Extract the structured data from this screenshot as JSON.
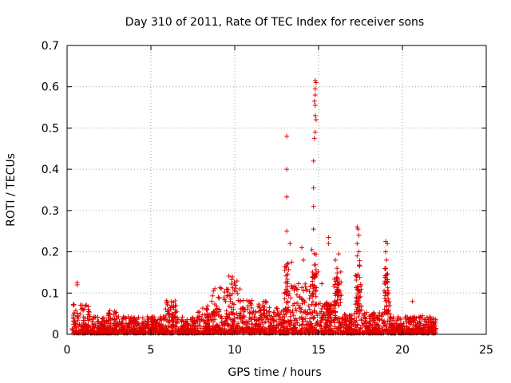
{
  "chart_data": {
    "type": "scatter",
    "title": "Day 310 of 2011, Rate Of TEC Index for receiver sons",
    "xlabel": "GPS time / hours",
    "ylabel": "ROTI / TECUs",
    "xlim": [
      0,
      25
    ],
    "ylim": [
      0,
      0.7
    ],
    "xticks": [
      "0",
      "5",
      "10",
      "15",
      "20",
      "25"
    ],
    "yticks": [
      "0",
      "0.1",
      "0.2",
      "0.3",
      "0.4",
      "0.5",
      "0.6",
      "0.7"
    ],
    "grid": true,
    "marker": "plus",
    "color": "#e00000",
    "notable_points": [
      {
        "x": 0.6,
        "y": 0.125
      },
      {
        "x": 0.6,
        "y": 0.12
      },
      {
        "x": 13.1,
        "y": 0.48
      },
      {
        "x": 13.1,
        "y": 0.4
      },
      {
        "x": 13.1,
        "y": 0.333
      },
      {
        "x": 13.1,
        "y": 0.25
      },
      {
        "x": 13.3,
        "y": 0.22
      },
      {
        "x": 13.4,
        "y": 0.175
      },
      {
        "x": 14.0,
        "y": 0.21
      },
      {
        "x": 14.1,
        "y": 0.18
      },
      {
        "x": 14.8,
        "y": 0.615
      },
      {
        "x": 14.85,
        "y": 0.61
      },
      {
        "x": 14.8,
        "y": 0.595
      },
      {
        "x": 14.8,
        "y": 0.58
      },
      {
        "x": 14.75,
        "y": 0.565
      },
      {
        "x": 14.8,
        "y": 0.555
      },
      {
        "x": 14.8,
        "y": 0.53
      },
      {
        "x": 14.85,
        "y": 0.52
      },
      {
        "x": 14.8,
        "y": 0.49
      },
      {
        "x": 14.75,
        "y": 0.475
      },
      {
        "x": 14.7,
        "y": 0.42
      },
      {
        "x": 14.7,
        "y": 0.355
      },
      {
        "x": 14.7,
        "y": 0.31
      },
      {
        "x": 14.7,
        "y": 0.255
      },
      {
        "x": 14.6,
        "y": 0.205
      },
      {
        "x": 15.6,
        "y": 0.235
      },
      {
        "x": 15.6,
        "y": 0.22
      },
      {
        "x": 16.2,
        "y": 0.195
      },
      {
        "x": 16.0,
        "y": 0.18
      },
      {
        "x": 16.1,
        "y": 0.16
      },
      {
        "x": 17.3,
        "y": 0.26
      },
      {
        "x": 17.35,
        "y": 0.255
      },
      {
        "x": 17.4,
        "y": 0.24
      },
      {
        "x": 17.3,
        "y": 0.22
      },
      {
        "x": 17.4,
        "y": 0.2
      },
      {
        "x": 17.3,
        "y": 0.19
      },
      {
        "x": 19.0,
        "y": 0.225
      },
      {
        "x": 19.1,
        "y": 0.22
      },
      {
        "x": 19.0,
        "y": 0.2
      },
      {
        "x": 19.05,
        "y": 0.18
      },
      {
        "x": 19.0,
        "y": 0.16
      },
      {
        "x": 20.6,
        "y": 0.08
      },
      {
        "x": 21.2,
        "y": 0.045
      }
    ],
    "activity_bands": [
      {
        "x_start": 0.3,
        "x_end": 1.4,
        "y_max": 0.07
      },
      {
        "x_start": 1.4,
        "x_end": 2.2,
        "y_max": 0.04
      },
      {
        "x_start": 2.2,
        "x_end": 3.2,
        "y_max": 0.055
      },
      {
        "x_start": 3.2,
        "x_end": 5.8,
        "y_max": 0.04
      },
      {
        "x_start": 5.8,
        "x_end": 6.6,
        "y_max": 0.08
      },
      {
        "x_start": 6.6,
        "x_end": 7.8,
        "y_max": 0.04
      },
      {
        "x_start": 7.8,
        "x_end": 8.6,
        "y_max": 0.07
      },
      {
        "x_start": 8.6,
        "x_end": 9.6,
        "y_max": 0.11
      },
      {
        "x_start": 9.6,
        "x_end": 10.4,
        "y_max": 0.14
      },
      {
        "x_start": 10.4,
        "x_end": 12.0,
        "y_max": 0.08
      },
      {
        "x_start": 12.0,
        "x_end": 13.0,
        "y_max": 0.065
      },
      {
        "x_start": 13.0,
        "x_end": 14.6,
        "y_max": 0.12
      },
      {
        "x_start": 14.6,
        "x_end": 15.2,
        "y_max": 0.15
      },
      {
        "x_start": 15.2,
        "x_end": 15.9,
        "y_max": 0.08
      },
      {
        "x_start": 15.9,
        "x_end": 16.4,
        "y_max": 0.15
      },
      {
        "x_start": 16.4,
        "x_end": 17.2,
        "y_max": 0.05
      },
      {
        "x_start": 17.2,
        "x_end": 17.6,
        "y_max": 0.15
      },
      {
        "x_start": 17.6,
        "x_end": 18.9,
        "y_max": 0.05
      },
      {
        "x_start": 18.9,
        "x_end": 19.3,
        "y_max": 0.14
      },
      {
        "x_start": 19.3,
        "x_end": 20.5,
        "y_max": 0.04
      },
      {
        "x_start": 20.5,
        "x_end": 22.0,
        "y_max": 0.04
      }
    ]
  }
}
